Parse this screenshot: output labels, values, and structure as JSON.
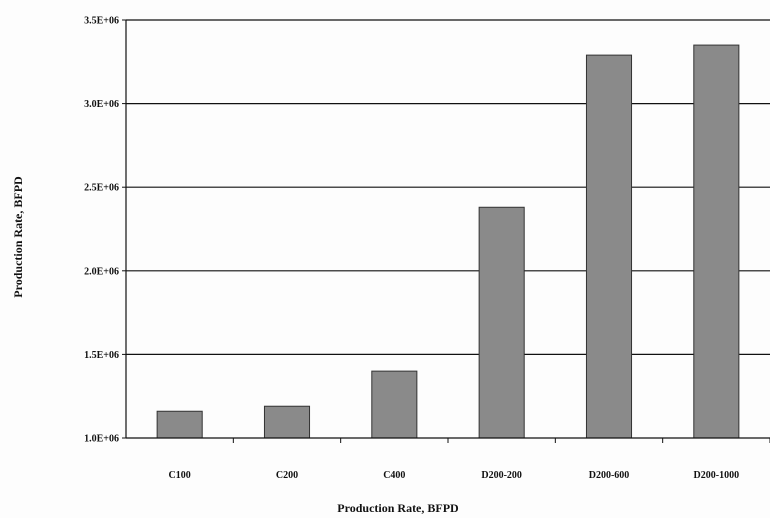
{
  "chart_data": {
    "type": "bar",
    "categories": [
      "C100",
      "C200",
      "C400",
      "D200-200",
      "D200-600",
      "D200-1000"
    ],
    "values": [
      1160000,
      1190000,
      1400000,
      2380000,
      3290000,
      3350000
    ],
    "ylabel": "Production Rate, BFPD",
    "xlabel": "Production Rate, BFPD",
    "ylim": [
      1000000,
      3500000
    ],
    "yticks": [
      1000000,
      1500000,
      2000000,
      2500000,
      3000000,
      3500000
    ],
    "ytick_labels": [
      "1.0E+06",
      "1.5E+06",
      "2.0E+06",
      "2.5E+06",
      "3.0E+06",
      "3.5E+06"
    ],
    "grid": true,
    "bar_color": "#8a8a8a",
    "bar_edge_color": "#333333"
  }
}
